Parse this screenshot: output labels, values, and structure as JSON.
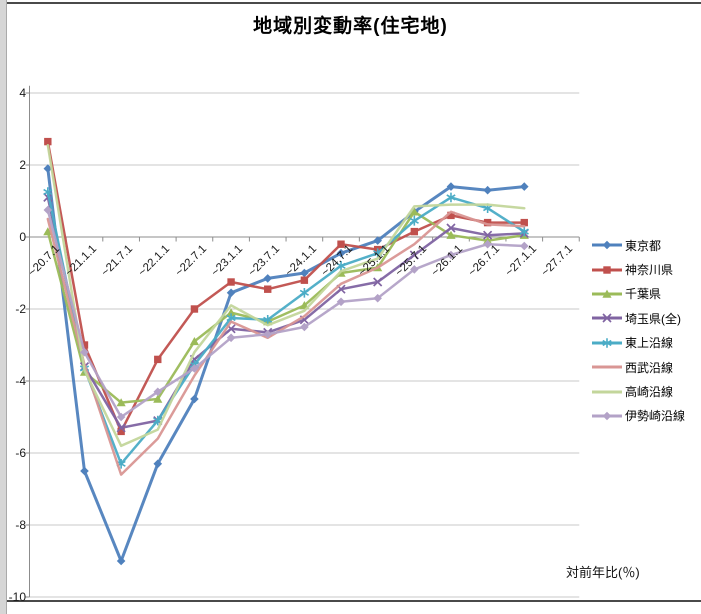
{
  "window": {
    "footnote": "対前年比(％)"
  },
  "chart_data": {
    "type": "line",
    "title": "地域別変動率(住宅地)",
    "xlabel": "",
    "ylabel": "対前年比(％)",
    "grid": true,
    "legend_position": "right",
    "ylim": [
      -10,
      4.6
    ],
    "y_tick_labels": [
      "4",
      "2",
      "0",
      "-2",
      "-4",
      "-6",
      "-8",
      "-10"
    ],
    "y_ticks": [
      4,
      2,
      0,
      -2,
      -4,
      -6,
      -8,
      -10
    ],
    "categories": [
      "~20.7.1",
      "~21.1.1",
      "~21.7.1",
      "~22.1.1",
      "~22.7.1",
      "~23.1.1",
      "~23.7.1",
      "~24.1.1",
      "~24.7.1",
      "~25.1.1",
      "~25.7.1",
      "~26.1.1",
      "~26.7.1",
      "~27.1.1",
      "~27.7.1"
    ],
    "note": "last category has no data points",
    "series": [
      {
        "name": "東京都",
        "color": "#4F81BD",
        "marker": "diamond",
        "values": [
          1.9,
          -6.5,
          -9.0,
          -6.3,
          -4.5,
          -1.55,
          -1.15,
          -1.0,
          -0.45,
          -0.1,
          0.7,
          1.4,
          1.3,
          1.4
        ]
      },
      {
        "name": "神奈川県",
        "color": "#C0504D",
        "marker": "square",
        "values": [
          2.65,
          -3.0,
          -5.4,
          -3.4,
          -2.0,
          -1.25,
          -1.45,
          -1.2,
          -0.2,
          -0.35,
          0.15,
          0.6,
          0.4,
          0.4
        ]
      },
      {
        "name": "千葉県",
        "color": "#9BBB59",
        "marker": "triangle",
        "values": [
          0.15,
          -3.75,
          -4.6,
          -4.5,
          -2.9,
          -2.1,
          -2.35,
          -1.9,
          -1.0,
          -0.85,
          0.7,
          0.05,
          -0.1,
          0.05
        ]
      },
      {
        "name": "埼玉県(全)",
        "color": "#8064A2",
        "marker": "x",
        "values": [
          1.1,
          -3.6,
          -5.3,
          -5.1,
          -3.4,
          -2.55,
          -2.65,
          -2.3,
          -1.45,
          -1.25,
          -0.5,
          0.25,
          0.05,
          0.1
        ]
      },
      {
        "name": "東上沿線",
        "color": "#4BACC6",
        "marker": "asterisk",
        "values": [
          1.25,
          -3.65,
          -6.3,
          -5.1,
          -3.55,
          -2.25,
          -2.3,
          -1.55,
          -0.8,
          -0.45,
          0.45,
          1.1,
          0.8,
          0.15
        ]
      },
      {
        "name": "西武沿線",
        "color": "#D99694",
        "marker": "none",
        "values": [
          0.5,
          -3.55,
          -6.6,
          -5.6,
          -3.85,
          -2.35,
          -2.8,
          -2.2,
          -1.3,
          -0.85,
          -0.2,
          0.7,
          0.35,
          0.3
        ]
      },
      {
        "name": "高崎沿線",
        "color": "#C3D69B",
        "marker": "none",
        "values": [
          2.55,
          -3.7,
          -5.8,
          -5.35,
          -3.2,
          -1.9,
          -2.45,
          -2.05,
          -0.95,
          -0.6,
          0.85,
          0.9,
          0.9,
          0.8
        ]
      },
      {
        "name": "伊勢崎沿線",
        "color": "#B3A2C7",
        "marker": "diamond",
        "values": [
          0.75,
          -3.2,
          -5.0,
          -4.3,
          -3.65,
          -2.8,
          -2.7,
          -2.5,
          -1.8,
          -1.7,
          -0.9,
          -0.5,
          -0.2,
          -0.25
        ]
      }
    ],
    "axis_color": "#8c8c8c",
    "grid_color": "#c9c9c9"
  }
}
